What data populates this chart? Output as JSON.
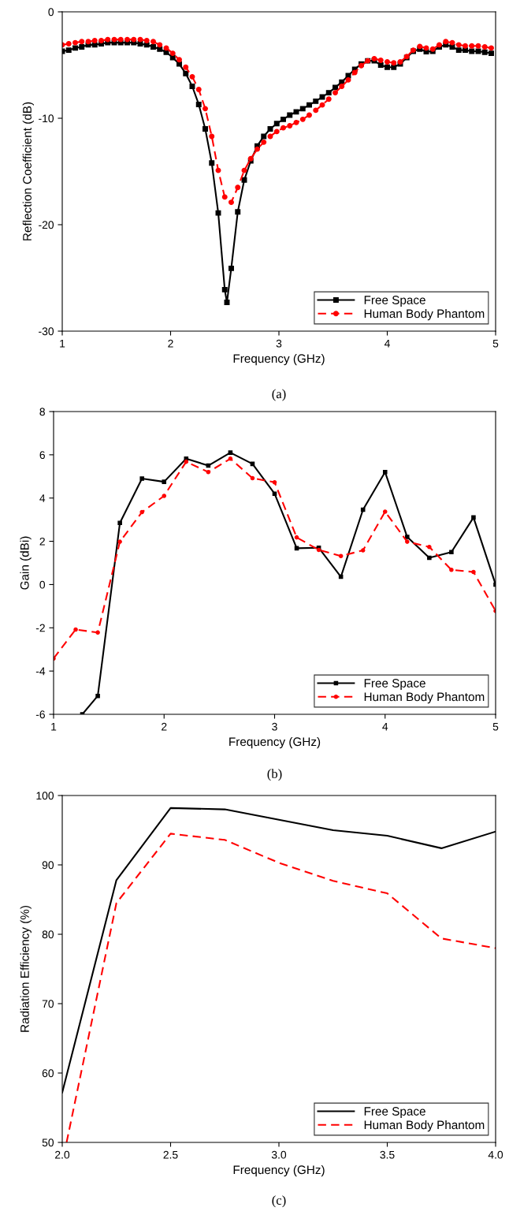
{
  "chart_data": [
    {
      "type": "line",
      "xlabel": "Frequency (GHz)",
      "ylabel": "Reflection Coefficient (dB)",
      "xlim": [
        1,
        5
      ],
      "ylim": [
        -30,
        0
      ],
      "xticks": [
        1,
        2,
        3,
        4,
        5
      ],
      "yticks": [
        -30,
        -20,
        -10,
        0
      ],
      "legend": "bottom right",
      "grid": false,
      "annotations": [
        "(a)"
      ],
      "series": [
        {
          "name": "Free Space",
          "color": "#000000",
          "line_style": "solid",
          "marker": "square",
          "x": [
            1.0,
            1.06,
            1.12,
            1.18,
            1.24,
            1.3,
            1.36,
            1.42,
            1.48,
            1.54,
            1.6,
            1.66,
            1.72,
            1.78,
            1.84,
            1.9,
            1.96,
            2.02,
            2.08,
            2.14,
            2.2,
            2.26,
            2.32,
            2.38,
            2.44,
            2.5,
            2.52,
            2.56,
            2.62,
            2.68,
            2.74,
            2.8,
            2.86,
            2.92,
            2.98,
            3.04,
            3.1,
            3.16,
            3.22,
            3.28,
            3.34,
            3.4,
            3.46,
            3.52,
            3.58,
            3.64,
            3.7,
            3.76,
            3.82,
            3.88,
            3.94,
            4.0,
            4.06,
            4.12,
            4.18,
            4.24,
            4.3,
            4.36,
            4.42,
            4.48,
            4.54,
            4.6,
            4.66,
            4.72,
            4.78,
            4.84,
            4.9,
            4.96
          ],
          "values": [
            -3.7,
            -3.6,
            -3.4,
            -3.3,
            -3.1,
            -3.1,
            -3.0,
            -2.9,
            -2.9,
            -2.9,
            -2.9,
            -2.9,
            -3.0,
            -3.1,
            -3.3,
            -3.5,
            -3.8,
            -4.3,
            -4.9,
            -5.8,
            -7.0,
            -8.7,
            -11.0,
            -14.2,
            -18.9,
            -26.1,
            -27.3,
            -24.1,
            -18.8,
            -15.8,
            -14.0,
            -12.6,
            -11.7,
            -11.0,
            -10.5,
            -10.1,
            -9.7,
            -9.4,
            -9.1,
            -8.75,
            -8.4,
            -8.0,
            -7.6,
            -7.1,
            -6.6,
            -6.0,
            -5.4,
            -4.9,
            -4.6,
            -4.6,
            -5.0,
            -5.2,
            -5.2,
            -4.9,
            -4.3,
            -3.7,
            -3.5,
            -3.75,
            -3.7,
            -3.3,
            -3.1,
            -3.3,
            -3.6,
            -3.6,
            -3.7,
            -3.7,
            -3.8,
            -3.9
          ]
        },
        {
          "name": "Human Body Phantom",
          "color": "#ff0000",
          "line_style": "dashed",
          "marker": "circle",
          "x": [
            1.0,
            1.06,
            1.12,
            1.18,
            1.24,
            1.3,
            1.36,
            1.42,
            1.48,
            1.54,
            1.6,
            1.66,
            1.72,
            1.78,
            1.84,
            1.9,
            1.96,
            2.02,
            2.08,
            2.14,
            2.2,
            2.26,
            2.32,
            2.38,
            2.44,
            2.5,
            2.56,
            2.62,
            2.68,
            2.74,
            2.8,
            2.86,
            2.92,
            2.98,
            3.04,
            3.1,
            3.16,
            3.22,
            3.28,
            3.34,
            3.4,
            3.46,
            3.52,
            3.58,
            3.64,
            3.7,
            3.76,
            3.82,
            3.88,
            3.94,
            4.0,
            4.06,
            4.12,
            4.18,
            4.24,
            4.3,
            4.36,
            4.42,
            4.48,
            4.54,
            4.6,
            4.66,
            4.72,
            4.78,
            4.84,
            4.9,
            4.96
          ],
          "values": [
            -3.1,
            -3.0,
            -2.9,
            -2.8,
            -2.8,
            -2.7,
            -2.7,
            -2.6,
            -2.6,
            -2.6,
            -2.6,
            -2.6,
            -2.6,
            -2.7,
            -2.8,
            -3.1,
            -3.4,
            -3.9,
            -4.5,
            -5.2,
            -6.1,
            -7.3,
            -9.1,
            -11.7,
            -14.9,
            -17.4,
            -17.9,
            -16.5,
            -14.9,
            -13.8,
            -12.9,
            -12.25,
            -11.7,
            -11.25,
            -10.9,
            -10.7,
            -10.4,
            -10.1,
            -9.7,
            -9.25,
            -8.75,
            -8.2,
            -7.6,
            -7.0,
            -6.4,
            -5.7,
            -5.05,
            -4.6,
            -4.4,
            -4.55,
            -4.7,
            -4.8,
            -4.7,
            -4.2,
            -3.6,
            -3.25,
            -3.4,
            -3.5,
            -3.1,
            -2.8,
            -2.9,
            -3.1,
            -3.2,
            -3.2,
            -3.2,
            -3.3,
            -3.4
          ]
        }
      ]
    },
    {
      "type": "line",
      "xlabel": "Frequency (GHz)",
      "ylabel": "Gain (dBi)",
      "xlim": [
        1,
        5
      ],
      "ylim": [
        -6,
        8
      ],
      "xticks": [
        1,
        2,
        3,
        4,
        5
      ],
      "yticks": [
        -6,
        -4,
        -2,
        0,
        2,
        4,
        6,
        8
      ],
      "legend": "bottom right",
      "grid": false,
      "annotations": [
        "(b)"
      ],
      "series": [
        {
          "name": "Free Space",
          "color": "#000000",
          "line_style": "solid",
          "marker": "square",
          "x": [
            1.26,
            1.4,
            1.6,
            1.8,
            2.0,
            2.2,
            2.4,
            2.6,
            2.8,
            3.0,
            3.2,
            3.4,
            3.6,
            3.8,
            4.0,
            4.2,
            4.4,
            4.6,
            4.8,
            5.0
          ],
          "values": [
            -6.0,
            -5.15,
            2.85,
            4.9,
            4.75,
            5.82,
            5.5,
            6.1,
            5.58,
            4.2,
            1.68,
            1.7,
            0.36,
            3.46,
            5.2,
            2.2,
            1.24,
            1.5,
            3.1,
            0.0
          ]
        },
        {
          "name": "Human Body Phantom",
          "color": "#ff0000",
          "line_style": "dashed",
          "marker": "circle",
          "x": [
            1.0,
            1.2,
            1.4,
            1.6,
            1.8,
            2.0,
            2.2,
            2.4,
            2.6,
            2.8,
            3.0,
            3.2,
            3.4,
            3.6,
            3.8,
            4.0,
            4.2,
            4.4,
            4.6,
            4.8,
            5.0
          ],
          "values": [
            -3.42,
            -2.08,
            -2.22,
            1.98,
            3.35,
            4.1,
            5.68,
            5.2,
            5.82,
            4.92,
            4.73,
            2.18,
            1.6,
            1.32,
            1.58,
            3.37,
            1.98,
            1.74,
            0.68,
            0.58,
            -1.22
          ]
        }
      ]
    },
    {
      "type": "line",
      "xlabel": "Frequency (GHz)",
      "ylabel": "Radiation Efficiency (%)",
      "xlim": [
        2.0,
        4.0
      ],
      "ylim": [
        50,
        100
      ],
      "xticks": [
        {
          "value": 2.0,
          "label": "2.0"
        },
        {
          "value": 2.5,
          "label": "2.5"
        },
        {
          "value": 3.0,
          "label": "3.0"
        },
        {
          "value": 3.5,
          "label": "3.5"
        },
        {
          "value": 4.0,
          "label": "4.0"
        }
      ],
      "yticks": [
        50,
        60,
        70,
        80,
        90,
        100
      ],
      "legend": "bottom right",
      "grid": false,
      "annotations": [
        "(c)"
      ],
      "series": [
        {
          "name": "Free Space",
          "color": "#000000",
          "line_style": "solid",
          "marker": "none",
          "x": [
            2.0,
            2.25,
            2.5,
            2.75,
            3.0,
            3.25,
            3.5,
            3.75,
            4.0
          ],
          "values": [
            57.2,
            87.8,
            98.2,
            98.0,
            96.5,
            95.0,
            94.2,
            92.4,
            94.8
          ]
        },
        {
          "name": "Human Body Phantom",
          "color": "#ff0000",
          "line_style": "dashed",
          "marker": "none",
          "x": [
            2.02,
            2.25,
            2.5,
            2.75,
            3.0,
            3.25,
            3.5,
            3.75,
            4.0
          ],
          "values": [
            50.0,
            84.5,
            94.5,
            93.6,
            90.3,
            87.7,
            85.9,
            79.4,
            78.0
          ]
        }
      ]
    }
  ]
}
